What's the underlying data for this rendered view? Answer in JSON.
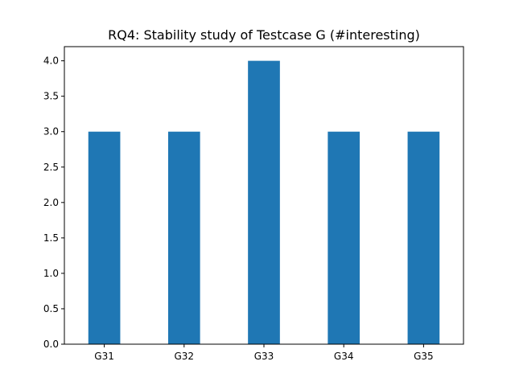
{
  "chart_data": {
    "type": "bar",
    "title": "RQ4: Stability study of Testcase G (#interesting)",
    "xlabel": "",
    "ylabel": "",
    "categories": [
      "G31",
      "G32",
      "G33",
      "G34",
      "G35"
    ],
    "values": [
      3,
      3,
      4,
      3,
      3
    ],
    "ylim": [
      0,
      4.2
    ],
    "yticks": [
      0.0,
      0.5,
      1.0,
      1.5,
      2.0,
      2.5,
      3.0,
      3.5,
      4.0
    ],
    "ytick_labels": [
      "0.0",
      "0.5",
      "1.0",
      "1.5",
      "2.0",
      "2.5",
      "3.0",
      "3.5",
      "4.0"
    ],
    "grid": false,
    "legend": "none",
    "bar_color": "#1f77b4"
  }
}
